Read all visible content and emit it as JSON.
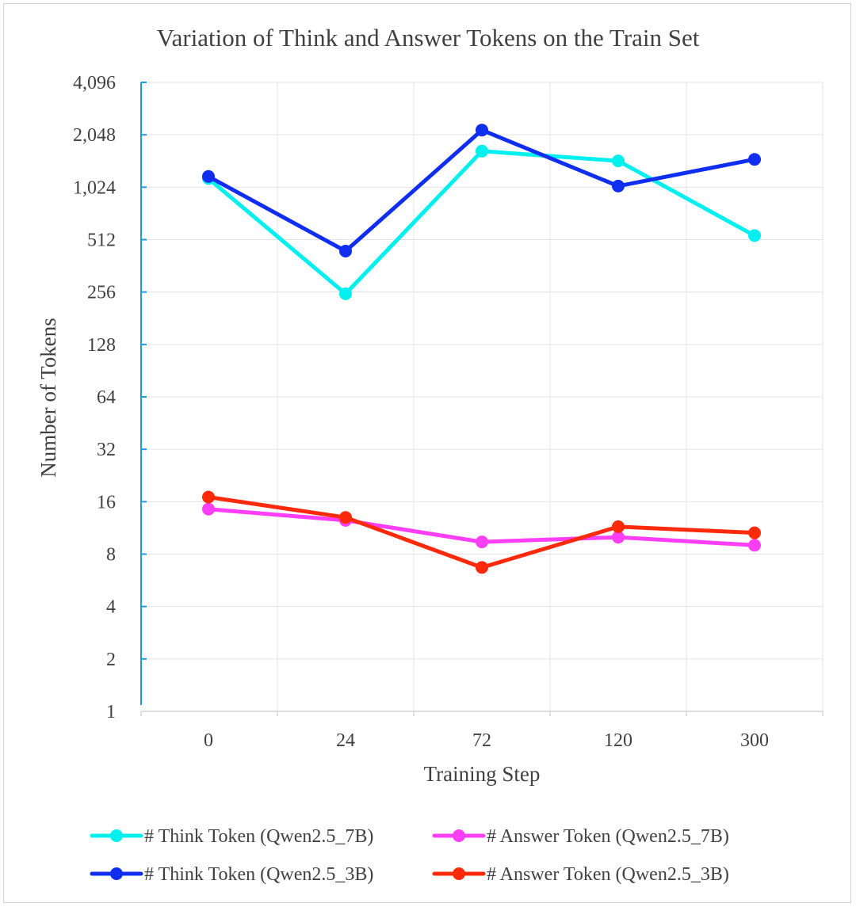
{
  "chart_data": {
    "type": "line",
    "title": "Variation of Think and Answer Tokens on the Train Set",
    "xlabel": "Training Step",
    "ylabel": "Number of Tokens",
    "categories": [
      "0",
      "24",
      "72",
      "120",
      "300"
    ],
    "y_scale": "log2",
    "ylim": [
      1,
      4096
    ],
    "y_ticks": [
      1,
      2,
      4,
      8,
      16,
      32,
      64,
      128,
      256,
      512,
      1024,
      2048,
      4096
    ],
    "y_tick_labels": [
      "1",
      "2",
      "4",
      "8",
      "16",
      "32",
      "64",
      "128",
      "256",
      "512",
      "1,024",
      "2,048",
      "4,096"
    ],
    "grid": true,
    "legend_position": "bottom",
    "series": [
      {
        "name": "# Think Token (Qwen2.5_7B)",
        "color": "#00f0f0",
        "values": [
          1150,
          250,
          1650,
          1450,
          540
        ]
      },
      {
        "name": "# Think Token (Qwen2.5_3B)",
        "color": "#0f2ef0",
        "values": [
          1180,
          440,
          2180,
          1040,
          1480
        ]
      },
      {
        "name": "# Answer Token (Qwen2.5_7B)",
        "color": "#ff3ef8",
        "values": [
          14.5,
          12.5,
          9.4,
          10.0,
          9.0
        ]
      },
      {
        "name": "# Answer Token (Qwen2.5_3B)",
        "color": "#ff2a0a",
        "values": [
          17.0,
          13.0,
          6.7,
          11.5,
          10.6
        ]
      }
    ]
  }
}
